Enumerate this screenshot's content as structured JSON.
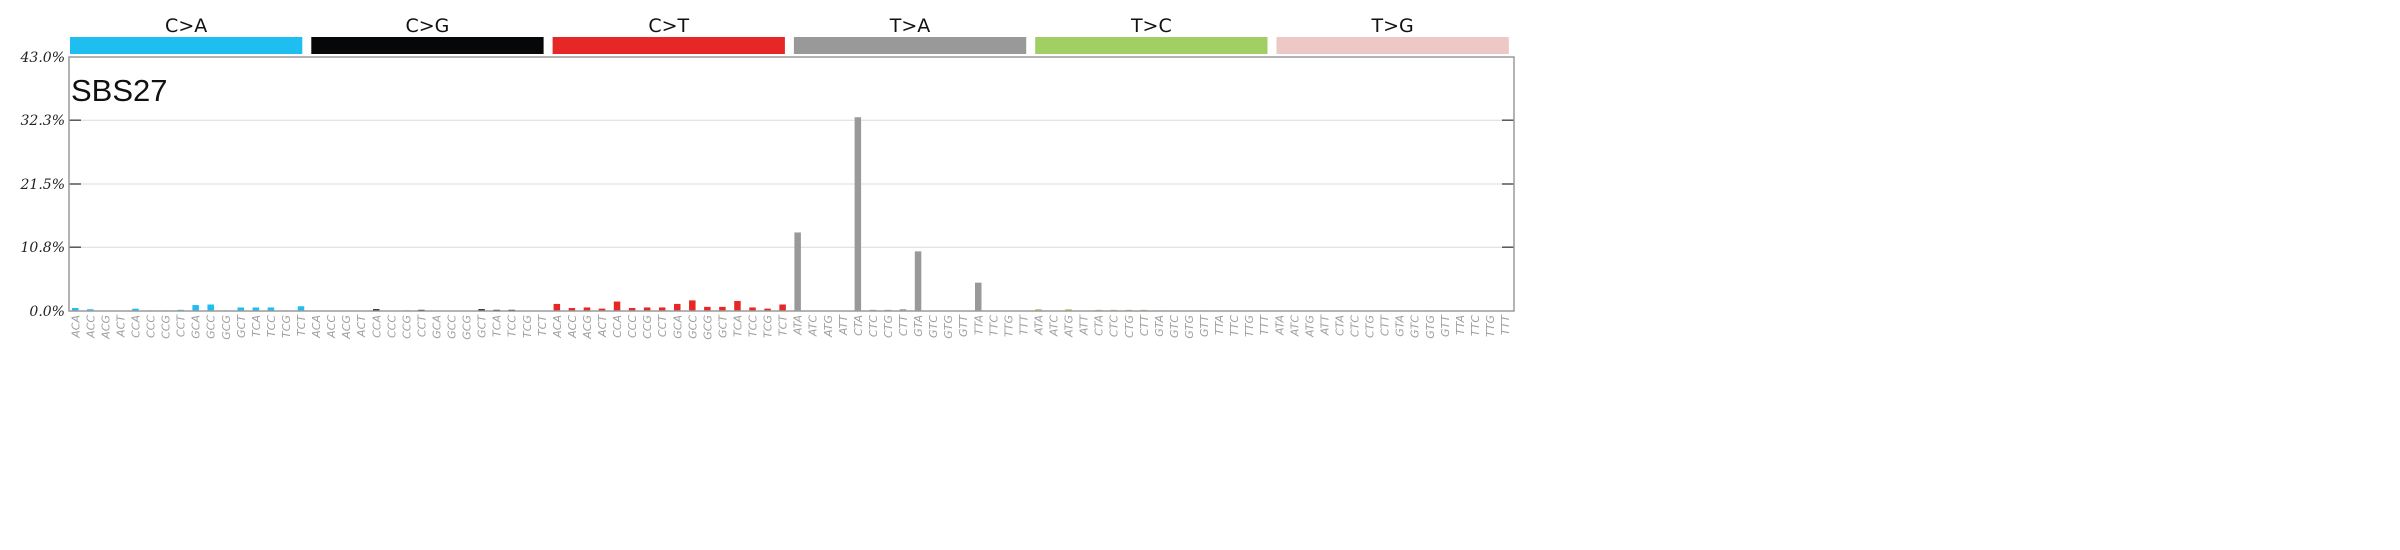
{
  "chart_data": {
    "type": "bar",
    "title": "SBS27",
    "ylim": [
      0,
      43.0
    ],
    "yticks": [
      "0.0%",
      "10.8%",
      "21.5%",
      "32.3%",
      "43.0%"
    ],
    "ytick_values": [
      0,
      10.8,
      21.5,
      32.3,
      43.0
    ],
    "groups": [
      {
        "name": "C>A",
        "color": "#1ebff0",
        "contexts": [
          "ACA",
          "ACC",
          "ACG",
          "ACT",
          "CCA",
          "CCC",
          "CCG",
          "CCT",
          "GCA",
          "GCC",
          "GCG",
          "GCT",
          "TCA",
          "TCC",
          "TCG",
          "TCT"
        ],
        "values": [
          0.5,
          0.3,
          0.0,
          0.0,
          0.4,
          0.1,
          0.1,
          0.2,
          1.0,
          1.1,
          0.1,
          0.6,
          0.6,
          0.6,
          0.1,
          0.8
        ]
      },
      {
        "name": "C>G",
        "color": "#050708",
        "contexts": [
          "ACA",
          "ACC",
          "ACG",
          "ACT",
          "CCA",
          "CCC",
          "CCG",
          "CCT",
          "GCA",
          "GCC",
          "GCG",
          "GCT",
          "TCA",
          "TCC",
          "TCG",
          "TCT"
        ],
        "values": [
          0.0,
          0.0,
          0.0,
          0.0,
          0.3,
          0.0,
          0.1,
          0.2,
          0.0,
          0.0,
          0.0,
          0.3,
          0.2,
          0.2,
          0.0,
          0.0
        ]
      },
      {
        "name": "C>T",
        "color": "#e62725",
        "contexts": [
          "ACA",
          "ACC",
          "ACG",
          "ACT",
          "CCA",
          "CCC",
          "CCG",
          "CCT",
          "GCA",
          "GCC",
          "GCG",
          "GCT",
          "TCA",
          "TCC",
          "TCG",
          "TCT"
        ],
        "values": [
          1.2,
          0.5,
          0.6,
          0.4,
          1.6,
          0.5,
          0.6,
          0.6,
          1.2,
          1.8,
          0.7,
          0.7,
          1.7,
          0.6,
          0.4,
          1.1
        ]
      },
      {
        "name": "T>A",
        "color": "#999999",
        "contexts": [
          "ATA",
          "ATC",
          "ATG",
          "ATT",
          "CTA",
          "CTC",
          "CTG",
          "CTT",
          "GTA",
          "GTC",
          "GTG",
          "GTT",
          "TTA",
          "TTC",
          "TTG",
          "TTT"
        ],
        "values": [
          13.3,
          0.0,
          0.0,
          0.0,
          32.8,
          0.2,
          0.2,
          0.3,
          10.1,
          0.0,
          0.0,
          0.0,
          4.8,
          0.0,
          0.0,
          0.0
        ]
      },
      {
        "name": "T>C",
        "color": "#a1cf64",
        "contexts": [
          "ATA",
          "ATC",
          "ATG",
          "ATT",
          "CTA",
          "CTC",
          "CTG",
          "CTT",
          "GTA",
          "GTC",
          "GTG",
          "GTT",
          "TTA",
          "TTC",
          "TTG",
          "TTT"
        ],
        "values": [
          0.3,
          0.0,
          0.3,
          0.0,
          0.2,
          0.2,
          0.2,
          0.2,
          0.1,
          0.0,
          0.0,
          0.1,
          0.0,
          0.0,
          0.0,
          0.0
        ]
      },
      {
        "name": "T>G",
        "color": "#edc8c5",
        "contexts": [
          "ATA",
          "ATC",
          "ATG",
          "ATT",
          "CTA",
          "CTC",
          "CTG",
          "CTT",
          "GTA",
          "GTC",
          "GTG",
          "GTT",
          "TTA",
          "TTC",
          "TTG",
          "TTT"
        ],
        "values": [
          0.0,
          0.0,
          0.0,
          0.0,
          0.0,
          0.0,
          0.0,
          0.0,
          0.0,
          0.0,
          0.1,
          0.0,
          0.0,
          0.0,
          0.0,
          0.0
        ]
      }
    ],
    "grid": true,
    "xlabel": "",
    "ylabel": ""
  }
}
